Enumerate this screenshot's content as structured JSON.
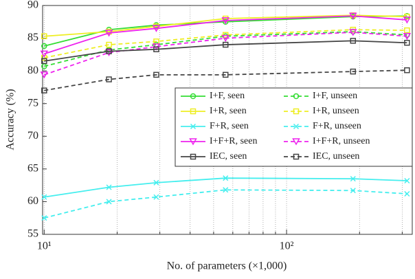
{
  "chart_data": {
    "type": "line",
    "xlabel": "No. of parameters (×1,000)",
    "ylabel": "Accuracy (%)",
    "xscale": "log",
    "x": [
      10,
      18.5,
      29,
      56,
      188,
      314
    ],
    "xlim": [
      9.85,
      330
    ],
    "xticks": [
      {
        "value": 10,
        "label": "10¹"
      },
      {
        "value": 100,
        "label": "10²"
      }
    ],
    "xminor_ticks": [
      20,
      30,
      40,
      50,
      60,
      70,
      80,
      90,
      200,
      300
    ],
    "ylim": [
      55,
      90
    ],
    "yticks": [
      55,
      60,
      65,
      70,
      75,
      80,
      85,
      90
    ],
    "grid": true,
    "legend": "upper right",
    "series": [
      {
        "name": "I+F, seen",
        "color": "#33dd33",
        "marker": "circle",
        "dash": false,
        "values": [
          83.8,
          86.3,
          87.0,
          87.5,
          88.3,
          88.4
        ]
      },
      {
        "name": "I+F, unseen",
        "color": "#33dd33",
        "marker": "circle",
        "dash": true,
        "values": [
          80.7,
          83.2,
          84.0,
          85.3,
          86.0,
          85.5
        ]
      },
      {
        "name": "I+R, seen",
        "color": "#eeee22",
        "marker": "square",
        "dash": false,
        "values": [
          85.3,
          86.0,
          86.8,
          88.0,
          88.5,
          88.3
        ]
      },
      {
        "name": "I+R, unseen",
        "color": "#eeee22",
        "marker": "square",
        "dash": true,
        "values": [
          82.0,
          84.0,
          84.5,
          85.5,
          86.3,
          86.2
        ]
      },
      {
        "name": "F+R, seen",
        "color": "#44eeee",
        "marker": "x",
        "dash": false,
        "values": [
          60.7,
          62.2,
          62.9,
          63.6,
          63.5,
          63.2
        ]
      },
      {
        "name": "F+R, unseen",
        "color": "#44eeee",
        "marker": "x",
        "dash": true,
        "values": [
          57.5,
          60.0,
          60.7,
          61.8,
          61.7,
          61.2
        ]
      },
      {
        "name": "I+F+R, seen",
        "color": "#ee22ee",
        "marker": "triangle",
        "dash": false,
        "values": [
          82.6,
          85.8,
          86.5,
          87.7,
          88.4,
          87.8
        ]
      },
      {
        "name": "I+F+R, unseen",
        "color": "#ee22ee",
        "marker": "triangle",
        "dash": true,
        "values": [
          79.4,
          82.8,
          83.7,
          85.0,
          85.9,
          85.3
        ]
      },
      {
        "name": "IEC, seen",
        "color": "#444444",
        "marker": "square",
        "dash": false,
        "values": [
          81.5,
          83.0,
          83.3,
          84.0,
          84.6,
          84.3
        ]
      },
      {
        "name": "IEC, unseen",
        "color": "#444444",
        "marker": "square",
        "dash": true,
        "values": [
          77.0,
          78.7,
          79.4,
          79.4,
          79.9,
          80.1
        ]
      }
    ]
  }
}
